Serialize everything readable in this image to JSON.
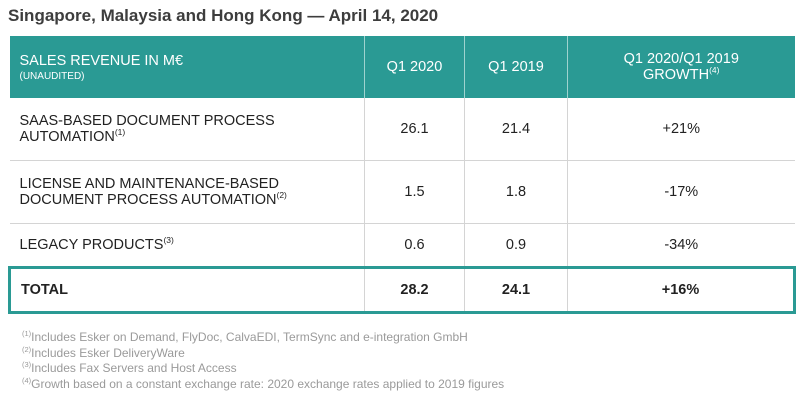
{
  "headline": "Singapore, Malaysia and Hong Kong — April 14, 2020",
  "table": {
    "header": {
      "label": "SALES REVENUE IN M€",
      "sublabel": "(UNAUDITED)",
      "q1_2020": "Q1 2020",
      "q1_2019": "Q1 2019",
      "growth_line1": "Q1 2020/Q1 2019",
      "growth_line2": "GROWTH",
      "growth_note": "(4)"
    },
    "rows": [
      {
        "label_line1": "SAAS-BASED DOCUMENT PROCESS",
        "label_line2": "AUTOMATION",
        "note": "(1)",
        "q1_2020": "26.1",
        "q1_2019": "21.4",
        "growth": "+21%"
      },
      {
        "label_line1": "LICENSE AND MAINTENANCE-BASED",
        "label_line2": "DOCUMENT PROCESS AUTOMATION",
        "note": "(2)",
        "q1_2020": "1.5",
        "q1_2019": "1.8",
        "growth": "-17%"
      },
      {
        "label": "LEGACY PRODUCTS",
        "note": "(3)",
        "q1_2020": "0.6",
        "q1_2019": "0.9",
        "growth": "-34%"
      }
    ],
    "total": {
      "label": "TOTAL",
      "q1_2020": "28.2",
      "q1_2019": "24.1",
      "growth": "+16%"
    }
  },
  "footnotes": [
    {
      "mark": "(1)",
      "text": "Includes Esker on Demand, FlyDoc, CalvaEDI, TermSync and e-integration GmbH"
    },
    {
      "mark": "(2)",
      "text": "Includes Esker DeliveryWare"
    },
    {
      "mark": "(3)",
      "text": "Includes Fax Servers and Host Access"
    },
    {
      "mark": "(4)",
      "text": "Growth based on a constant exchange rate: 2020 exchange rates applied to 2019 figures"
    }
  ],
  "colors": {
    "accent": "#2a9a94",
    "text": "#222222",
    "footnote": "#9a9a9a"
  }
}
